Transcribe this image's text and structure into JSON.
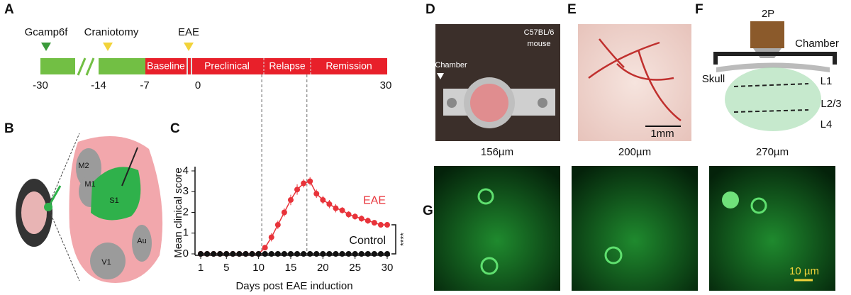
{
  "chart_data": {
    "type": "line",
    "x_label": "Days post EAE induction",
    "y_label": "Mean clinical score",
    "x": [
      1,
      2,
      3,
      4,
      5,
      6,
      7,
      8,
      9,
      10,
      11,
      12,
      13,
      14,
      15,
      16,
      17,
      18,
      19,
      20,
      21,
      22,
      23,
      24,
      25,
      26,
      27,
      28,
      29,
      30
    ],
    "series": [
      {
        "name": "EAE",
        "color": "#e8333a",
        "values": [
          0,
          0,
          0,
          0,
          0,
          0,
          0,
          0,
          0,
          0,
          0.3,
          0.8,
          1.4,
          2.0,
          2.6,
          3.1,
          3.4,
          3.5,
          2.9,
          2.6,
          2.4,
          2.2,
          2.1,
          1.9,
          1.8,
          1.7,
          1.6,
          1.5,
          1.4,
          1.4
        ],
        "errors": [
          null,
          null,
          null,
          null,
          null,
          null,
          null,
          null,
          null,
          null,
          0.1,
          0.2,
          0.2,
          0.2,
          0.25,
          0.25,
          0.2,
          0.2,
          0.2,
          0.2,
          0.2,
          0.2,
          0.15,
          0.15,
          0.15,
          0.15,
          0.15,
          0.1,
          0.1,
          0.1
        ]
      },
      {
        "name": "Control",
        "color": "#111111",
        "values": [
          0,
          0,
          0,
          0,
          0,
          0,
          0,
          0,
          0,
          0,
          0,
          0,
          0,
          0,
          0,
          0,
          0,
          0,
          0,
          0,
          0,
          0,
          0,
          0,
          0,
          0,
          0,
          0,
          0,
          0
        ]
      }
    ],
    "xlim": [
      1,
      30
    ],
    "xticks": [
      1,
      5,
      10,
      15,
      20,
      25,
      30
    ],
    "ylim": [
      0,
      4
    ],
    "yticks": [
      0,
      1,
      2,
      3,
      4
    ],
    "vlines": [
      10.5,
      17.5
    ],
    "significance": "****"
  },
  "panels": {
    "letters": [
      "A",
      "B",
      "C",
      "D",
      "E",
      "F",
      "G"
    ],
    "timeline": {
      "events": [
        "Gcamp6f",
        "Craniotomy",
        "EAE"
      ],
      "phases": [
        "Baseline",
        "Preclinical",
        "Relapse",
        "Remission"
      ],
      "ticks": [
        "-30",
        "-14",
        "-7",
        "0",
        "30"
      ]
    },
    "brain_map": {
      "regions": [
        "M2",
        "M1",
        "S1",
        "Au",
        "V1"
      ]
    },
    "photo": {
      "strain": "C57BL/6",
      "species": "mouse",
      "label": "Chamber"
    },
    "vessels": {
      "scale": "1mm"
    },
    "schematic": {
      "objective": "2P",
      "chamber": "Chamber",
      "skull": "Skull",
      "layers": [
        "L1",
        "L2/3",
        "L4"
      ]
    },
    "imaging": {
      "depths": [
        "156µm",
        "200µm",
        "270µm"
      ],
      "scale": "10 µm"
    }
  }
}
